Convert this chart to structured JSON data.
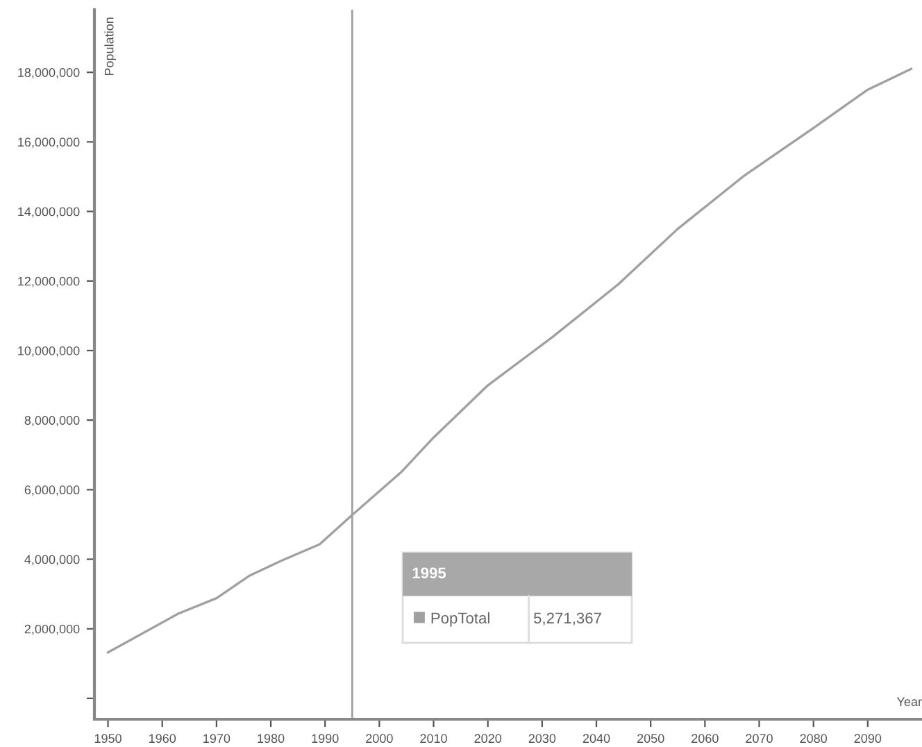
{
  "chart_data": {
    "type": "line",
    "xlabel": "Year",
    "ylabel": "Population",
    "x": [
      1950,
      1963,
      1970,
      1976,
      1982,
      1989,
      1995,
      2004,
      2010,
      2020,
      2032,
      2044,
      2055,
      2067,
      2080,
      2090,
      2098
    ],
    "series": [
      {
        "name": "PopTotal",
        "color": "#a0a0a0",
        "values": [
          1320000,
          2440000,
          2880000,
          3520000,
          3960000,
          4430000,
          5271367,
          6500000,
          7500000,
          9000000,
          10400000,
          11900000,
          13500000,
          15000000,
          16400000,
          17500000,
          18100000
        ]
      }
    ],
    "xlim": [
      1947.5,
      2100
    ],
    "xticks": [
      1950,
      1960,
      1970,
      1980,
      1990,
      2000,
      2010,
      2020,
      2030,
      2040,
      2050,
      2060,
      2070,
      2080,
      2090
    ],
    "ylim": [
      -600000,
      19800000
    ],
    "yticks": [
      {
        "value": 0,
        "label": null
      },
      {
        "value": 2000000,
        "label": "2,000,000"
      },
      {
        "value": 4000000,
        "label": "4,000,000"
      },
      {
        "value": 6000000,
        "label": "6,000,000"
      },
      {
        "value": 8000000,
        "label": "8,000,000"
      },
      {
        "value": 10000000,
        "label": "10,000,000"
      },
      {
        "value": 12000000,
        "label": "12,000,000"
      },
      {
        "value": 14000000,
        "label": "14,000,000"
      },
      {
        "value": 16000000,
        "label": "16,000,000"
      },
      {
        "value": 18000000,
        "label": "18,000,000"
      }
    ],
    "ref_lines": [
      {
        "axis": "x",
        "value": 1995,
        "color": "#a0a0a0"
      }
    ],
    "annotations": [
      "1995",
      "5,271,367"
    ],
    "grid": false,
    "marker": "none",
    "line_style": "solid"
  }
}
